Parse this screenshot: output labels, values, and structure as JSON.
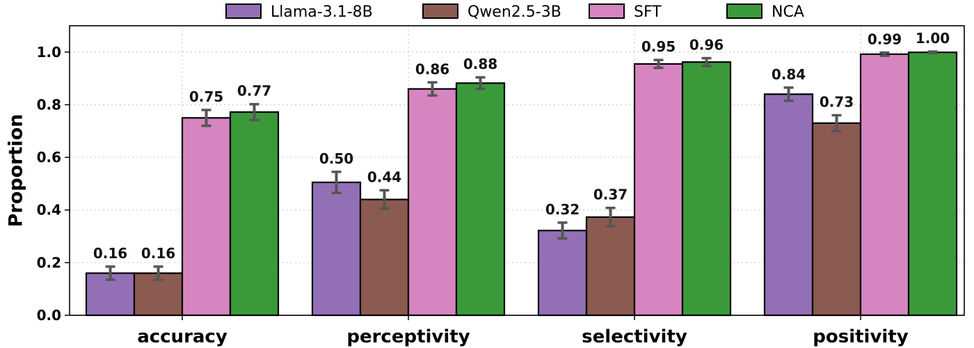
{
  "chart_data": {
    "type": "bar",
    "ylabel": "Proportion",
    "ylim": [
      0,
      1.1
    ],
    "yticks": [
      "0.0",
      "0.2",
      "0.4",
      "0.6",
      "0.8",
      "1.0"
    ],
    "grid": true,
    "legend_position": "top",
    "categories": [
      "accuracy",
      "perceptivity",
      "selectivity",
      "positivity"
    ],
    "series": [
      {
        "name": "Llama-3.1-8B",
        "color": "#9370b6",
        "values": [
          0.16,
          0.505,
          0.322,
          0.84
        ],
        "errors": [
          0.025,
          0.04,
          0.03,
          0.025
        ],
        "labels": [
          "0.16",
          "0.50",
          "0.32",
          "0.84"
        ]
      },
      {
        "name": "Qwen2.5-3B",
        "color": "#8b5a50",
        "values": [
          0.16,
          0.44,
          0.373,
          0.73
        ],
        "errors": [
          0.025,
          0.035,
          0.035,
          0.03
        ],
        "labels": [
          "0.16",
          "0.44",
          "0.37",
          "0.73"
        ]
      },
      {
        "name": "SFT",
        "color": "#d685c0",
        "values": [
          0.75,
          0.86,
          0.955,
          0.992
        ],
        "errors": [
          0.03,
          0.025,
          0.015,
          0.006
        ],
        "labels": [
          "0.75",
          "0.86",
          "0.95",
          "0.99"
        ]
      },
      {
        "name": "NCA",
        "color": "#3a9a3a",
        "values": [
          0.772,
          0.882,
          0.962,
          0.999
        ],
        "errors": [
          0.03,
          0.022,
          0.015,
          0.003
        ],
        "labels": [
          "0.77",
          "0.88",
          "0.96",
          "1.00"
        ]
      }
    ]
  }
}
